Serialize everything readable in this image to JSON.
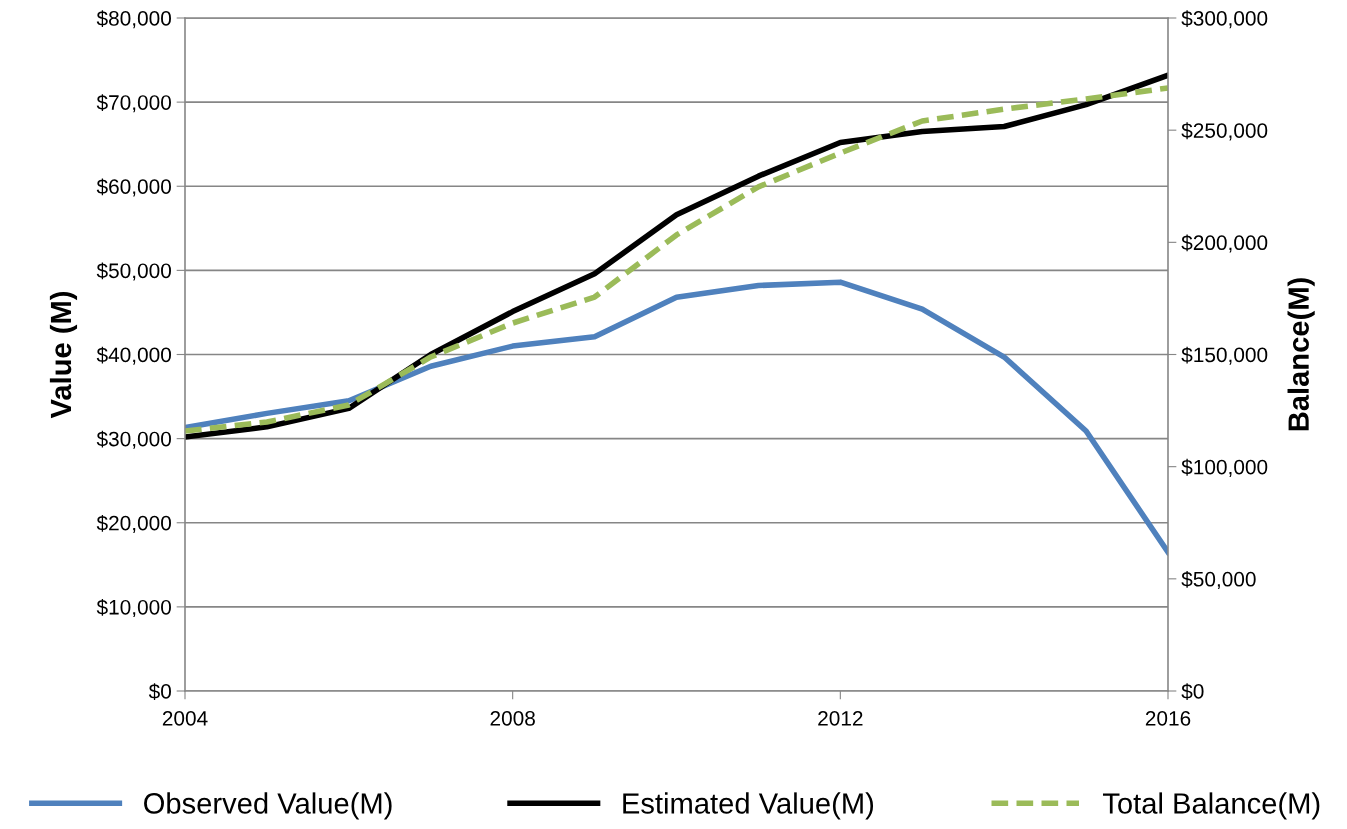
{
  "chart_data": {
    "type": "line",
    "ylabel": "Value (M)",
    "y2label": "Balance(M)",
    "x": [
      2004,
      2005,
      2006,
      2007,
      2008,
      2009,
      2010,
      2011,
      2012,
      2013,
      2014,
      2015,
      2016
    ],
    "xlim": [
      2004,
      2016
    ],
    "xticks": [
      2004,
      2008,
      2012,
      2016
    ],
    "ylim": [
      0,
      80000
    ],
    "yticks": [
      {
        "value": 0,
        "label": "$0"
      },
      {
        "value": 10000,
        "label": "$10,000"
      },
      {
        "value": 20000,
        "label": "$20,000"
      },
      {
        "value": 30000,
        "label": "$30,000"
      },
      {
        "value": 40000,
        "label": "$40,000"
      },
      {
        "value": 50000,
        "label": "$50,000"
      },
      {
        "value": 60000,
        "label": "$60,000"
      },
      {
        "value": 70000,
        "label": "$70,000"
      },
      {
        "value": 80000,
        "label": "$80,000"
      }
    ],
    "y2lim": [
      0,
      300000
    ],
    "y2ticks": [
      {
        "value": 0,
        "label": "$0"
      },
      {
        "value": 50000,
        "label": "$50,000"
      },
      {
        "value": 100000,
        "label": "$100,000"
      },
      {
        "value": 150000,
        "label": "$150,000"
      },
      {
        "value": 200000,
        "label": "$200,000"
      },
      {
        "value": 250000,
        "label": "$250,000"
      },
      {
        "value": 300000,
        "label": "$300,000"
      }
    ],
    "grid": "y",
    "legend": "bottom",
    "marker": "none",
    "series": [
      {
        "name": "Observed Value(M)",
        "color": "#4f81bd",
        "line_style": "solid",
        "values": [
          31300,
          33000,
          34500,
          38600,
          41000,
          42100,
          46800,
          48200,
          48600,
          45400,
          39700,
          30900,
          16500
        ]
      },
      {
        "name": "Estimated Value(M)",
        "color": "#000000",
        "line_style": "solid",
        "values": [
          30200,
          31400,
          33600,
          40000,
          45100,
          49600,
          56600,
          61200,
          65200,
          66500,
          67100,
          69700,
          73200
        ]
      },
      {
        "name": "Total Balance(M)",
        "color": "#9bbb59",
        "line_style": "dashed",
        "axis": "y2",
        "values": [
          115900,
          119900,
          127500,
          148900,
          164000,
          175600,
          203300,
          224700,
          239800,
          254100,
          259400,
          263900,
          268800
        ]
      }
    ]
  }
}
